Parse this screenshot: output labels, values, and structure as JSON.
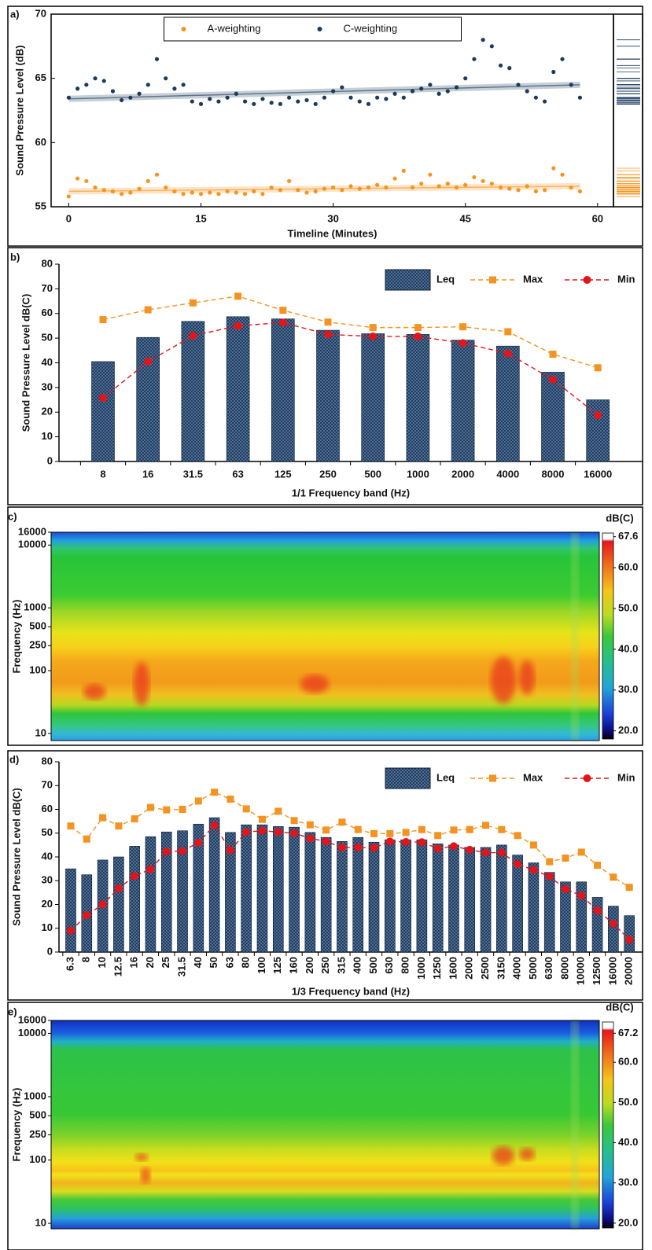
{
  "chart_data": [
    {
      "type": "scatter",
      "label": "a)",
      "x_label": "Timeline (Minutes)",
      "y_label": "Sound Pressure Level (dB)",
      "x": [
        0,
        1,
        2,
        3,
        4,
        5,
        6,
        7,
        8,
        9,
        10,
        11,
        12,
        13,
        14,
        15,
        16,
        17,
        18,
        19,
        20,
        21,
        22,
        23,
        24,
        25,
        26,
        27,
        28,
        29,
        30,
        31,
        32,
        33,
        34,
        35,
        36,
        37,
        38,
        39,
        40,
        41,
        42,
        43,
        44,
        45,
        46,
        47,
        48,
        49,
        50,
        51,
        52,
        53,
        54,
        55,
        56,
        57,
        58
      ],
      "series": [
        {
          "name": "A-weighting",
          "color": "#f7941d",
          "values": [
            55.8,
            57.2,
            57.0,
            56.5,
            56.3,
            56.2,
            56.0,
            56.1,
            56.4,
            57.0,
            57.5,
            56.5,
            56.2,
            56.0,
            56.1,
            56.0,
            56.1,
            56.0,
            56.2,
            56.1,
            56.0,
            56.2,
            56.0,
            56.5,
            56.3,
            57.0,
            56.3,
            56.1,
            56.2,
            56.4,
            56.5,
            56.3,
            56.6,
            56.4,
            56.5,
            56.7,
            56.5,
            57.2,
            57.8,
            56.5,
            56.8,
            57.5,
            56.6,
            56.8,
            56.5,
            56.7,
            57.3,
            57.0,
            56.8,
            56.5,
            56.4,
            56.3,
            56.6,
            56.2,
            56.3,
            58.0,
            57.5,
            56.5,
            56.2
          ],
          "trend": {
            "x": [
              0,
              58
            ],
            "values": [
              56.2,
              56.6
            ]
          }
        },
        {
          "name": "C-weighting",
          "color": "#1b3a5c",
          "values": [
            63.5,
            64.2,
            64.5,
            65.0,
            64.8,
            64.0,
            63.3,
            63.5,
            63.8,
            64.5,
            66.5,
            65.0,
            64.2,
            64.5,
            63.2,
            63.0,
            63.4,
            63.2,
            63.5,
            63.8,
            63.2,
            63.0,
            63.4,
            63.1,
            63.0,
            63.5,
            63.2,
            63.3,
            63.0,
            63.5,
            64.0,
            64.3,
            63.5,
            63.2,
            63.0,
            63.5,
            63.4,
            63.8,
            63.5,
            64.0,
            64.2,
            64.5,
            63.8,
            64.0,
            64.3,
            65.0,
            66.5,
            68.0,
            67.5,
            66.0,
            65.8,
            64.5,
            64.0,
            63.5,
            63.2,
            65.5,
            66.5,
            64.5,
            63.5
          ],
          "trend": {
            "x": [
              0,
              58
            ],
            "values": [
              63.4,
              64.5
            ]
          }
        }
      ],
      "xlim": [
        -2,
        61.8
      ],
      "ylim": [
        55,
        70
      ],
      "xticks": [
        0,
        15,
        30,
        45,
        60
      ],
      "yticks": [
        55,
        60,
        65,
        70
      ],
      "legend": "upper center",
      "marginal_rug": true
    },
    {
      "type": "bar",
      "label": "b)",
      "y_label": "Sound Pressure Level dB(C)",
      "x_label": "1/1 Frequency band (Hz)",
      "categories": [
        "8",
        "16",
        "31.5",
        "63",
        "125",
        "250",
        "500",
        "1000",
        "2000",
        "4000",
        "8000",
        "16000"
      ],
      "series": [
        {
          "name": "Leq",
          "kind": "bar",
          "color": "#1c3557",
          "values": [
            40.5,
            50.3,
            56.8,
            58.7,
            57.8,
            53.2,
            51.8,
            51.5,
            49.2,
            46.8,
            36.2,
            25.0
          ]
        },
        {
          "name": "Max",
          "kind": "line",
          "marker": "square",
          "color": "#f39321",
          "values": [
            57.5,
            61.5,
            64.3,
            67.0,
            61.3,
            56.5,
            54.3,
            54.3,
            54.6,
            52.6,
            43.5,
            38.0
          ]
        },
        {
          "name": "Min",
          "kind": "line",
          "marker": "circle",
          "color": "#e3151b",
          "values": [
            25.8,
            40.5,
            51.0,
            55.0,
            56.3,
            51.5,
            50.7,
            50.7,
            48.0,
            43.8,
            33.2,
            18.8
          ]
        }
      ],
      "ylim": [
        0,
        80
      ],
      "yticks": [
        0,
        10,
        20,
        30,
        40,
        50,
        60,
        70,
        80
      ],
      "legend": "upper right"
    },
    {
      "type": "spectrogram",
      "label": "c)",
      "y_label": "Frequency (Hz)",
      "log_y": true,
      "ylim": [
        7.7,
        16000
      ],
      "yticks": [
        10,
        100,
        250,
        500,
        1000,
        10000,
        16000
      ],
      "colorbar": {
        "title": "dB(C)",
        "clim": [
          18,
          68.5
        ],
        "ticks": [
          {
            "value": 67.6,
            "label": "67.6"
          },
          {
            "value": 60,
            "label": "60.0"
          },
          {
            "value": 50,
            "label": "50.0"
          },
          {
            "value": 40,
            "label": "40.0"
          },
          {
            "value": 30,
            "label": "30.0"
          },
          {
            "value": 20,
            "label": "20.0"
          }
        ]
      }
    },
    {
      "type": "bar",
      "label": "d)",
      "y_label": "Sound Pressure Level dB(C)",
      "x_label": "1/3 Frequency band (Hz)",
      "categories": [
        "6.3",
        "8",
        "10",
        "12.5",
        "16",
        "20",
        "25",
        "31.5",
        "40",
        "50",
        "63",
        "80",
        "100",
        "125",
        "160",
        "200",
        "250",
        "315",
        "400",
        "500",
        "630",
        "800",
        "1000",
        "1250",
        "1600",
        "2000",
        "2500",
        "3150",
        "4000",
        "5000",
        "6300",
        "8000",
        "10000",
        "12500",
        "16000",
        "20000"
      ],
      "series": [
        {
          "name": "Leq",
          "kind": "bar",
          "color": "#1c3557",
          "values": [
            35,
            32.5,
            38.7,
            40,
            44.5,
            48.5,
            50.5,
            51,
            53.8,
            56.5,
            50.3,
            53.5,
            53.5,
            52.8,
            52.5,
            50.3,
            48.2,
            46.5,
            48.2,
            46.2,
            47.2,
            47.2,
            47.2,
            45.5,
            45.0,
            44.0,
            44.0,
            45.0,
            40.8,
            37.5,
            33.5,
            29.5,
            29.5,
            23,
            19.3,
            15.3
          ]
        },
        {
          "name": "Max",
          "kind": "line",
          "marker": "square",
          "color": "#f39321",
          "values": [
            53,
            47.5,
            56.5,
            53,
            56,
            60.8,
            59.8,
            60,
            63.5,
            67.2,
            64.3,
            60.2,
            55.8,
            59.2,
            55.3,
            53.5,
            51.3,
            54.6,
            51.5,
            49.8,
            49.8,
            50.3,
            51.5,
            49,
            51.3,
            51.5,
            53.3,
            51.5,
            49,
            45,
            38,
            39.5,
            42,
            36.5,
            31.5,
            27.2
          ]
        },
        {
          "name": "Min",
          "kind": "line",
          "marker": "circle",
          "color": "#e3151b",
          "values": [
            9,
            15.5,
            20,
            26.8,
            32,
            34.8,
            42.3,
            42.5,
            46,
            53.3,
            42.8,
            50.5,
            51,
            50.5,
            50,
            47.8,
            46.5,
            44,
            44,
            43.8,
            46.5,
            46.3,
            46.2,
            43.5,
            44.5,
            43,
            41.8,
            41.8,
            37,
            34.5,
            31.8,
            26.5,
            23.7,
            17.5,
            12,
            5.2
          ]
        }
      ],
      "ylim": [
        0,
        80
      ],
      "yticks": [
        0,
        10,
        20,
        30,
        40,
        50,
        60,
        70,
        80
      ],
      "legend": "upper right"
    },
    {
      "type": "spectrogram",
      "label": "e)",
      "y_label": "Frequency (Hz)",
      "log_y": true,
      "ylim": [
        8.2,
        16000
      ],
      "yticks": [
        10,
        100,
        250,
        500,
        1000,
        10000,
        16000
      ],
      "colorbar": {
        "title": "dB(C)",
        "clim": [
          18.8,
          70
        ],
        "ticks": [
          {
            "value": 67.2,
            "label": "67.2"
          },
          {
            "value": 60,
            "label": "60.0"
          },
          {
            "value": 50,
            "label": "50.0"
          },
          {
            "value": 40,
            "label": "40.0"
          },
          {
            "value": 30,
            "label": "30.0"
          },
          {
            "value": 20,
            "label": "20.0"
          }
        ]
      }
    }
  ]
}
